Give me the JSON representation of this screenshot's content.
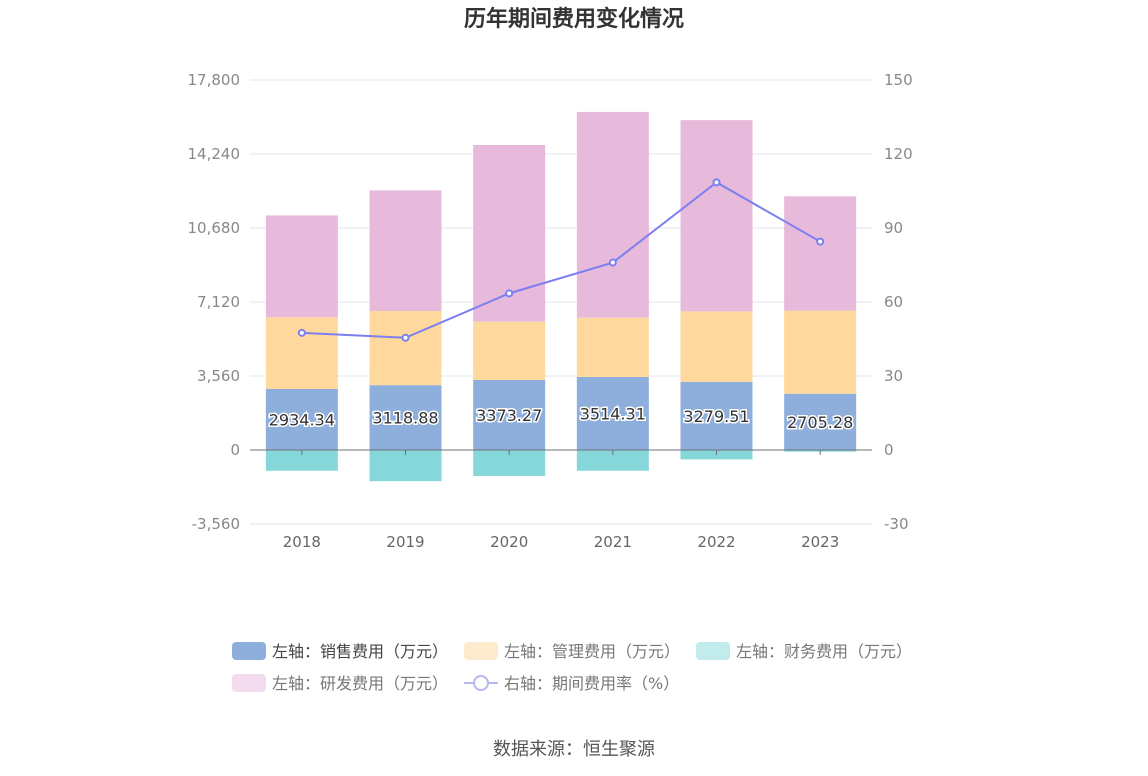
{
  "chart_data": {
    "type": "bar",
    "title": "历年期间费用变化情况",
    "categories": [
      "2018",
      "2019",
      "2020",
      "2021",
      "2022",
      "2023"
    ],
    "left_axis": {
      "ticks": [
        "17,800",
        "14,240",
        "10,680",
        "7,120",
        "3,560",
        "0",
        "-3,560"
      ],
      "ylim": [
        -3560,
        17800
      ]
    },
    "right_axis": {
      "ticks": [
        "150",
        "120",
        "90",
        "60",
        "30",
        "0",
        "-30"
      ],
      "ylim": [
        -30,
        150
      ]
    },
    "series": [
      {
        "name": "左轴：销售费用（万元）",
        "kind": "bar",
        "axis": "left",
        "color": "#8eaedb",
        "values": [
          2934.34,
          3118.88,
          3373.27,
          3514.31,
          3279.51,
          2705.28
        ],
        "labels": [
          "2934.34",
          "3118.88",
          "3373.27",
          "3514.31",
          "3279.51",
          "2705.28"
        ]
      },
      {
        "name": "左轴：管理费用（万元）",
        "kind": "bar",
        "axis": "left",
        "color": "#fed89c",
        "values": [
          3450,
          3570,
          2800,
          2850,
          3390,
          4000
        ]
      },
      {
        "name": "左轴：财务费用（万元）",
        "kind": "bar",
        "axis": "left",
        "color": "#86d7da",
        "values": [
          -1000,
          -1500,
          -1250,
          -1000,
          -450,
          -80
        ]
      },
      {
        "name": "左轴：研发费用（万元）",
        "kind": "bar",
        "axis": "left",
        "color": "#e7b9db",
        "values": [
          4900,
          5800,
          8500,
          9900,
          9200,
          5500
        ]
      },
      {
        "name": "右轴：期间费用率（%）",
        "kind": "line",
        "axis": "right",
        "color": "#7b7ff0",
        "values": [
          47.5,
          45.5,
          63.5,
          76,
          108.5,
          84.5
        ]
      }
    ],
    "legend_position": "bottom",
    "grid": true
  },
  "source": "数据来源：恒生聚源"
}
